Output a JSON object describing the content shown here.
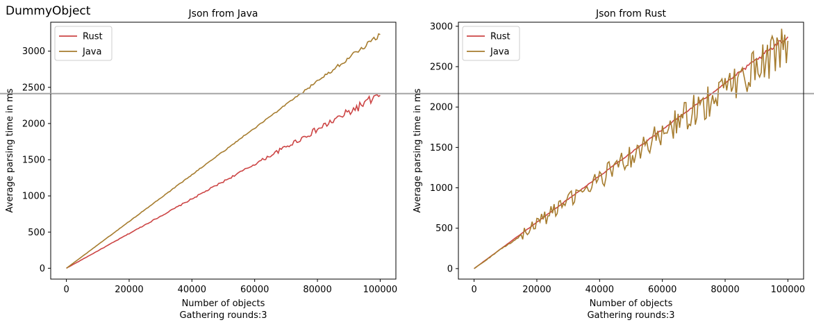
{
  "figure_title": "DummyObject",
  "chart_data": [
    {
      "type": "line",
      "title": "Json from Java",
      "xlabel": "Number of objects",
      "xlabel2": "Gathering rounds:3",
      "ylabel": "Average parsing time in ms",
      "xlim": [
        -5000,
        105000
      ],
      "ylim": [
        -150,
        3400
      ],
      "xticks": [
        0,
        20000,
        40000,
        60000,
        80000,
        100000
      ],
      "yticks": [
        0,
        500,
        1000,
        1500,
        2000,
        2500,
        3000
      ],
      "hline": 2410,
      "legend_position": "top-left",
      "series": [
        {
          "name": "Rust",
          "color": "#cc4444",
          "slope": 0.02396,
          "noise_start": 0.6,
          "noise_amp": 35,
          "end_value": 2390
        },
        {
          "name": "Java",
          "color": "#a67c2e",
          "slope": 0.0323,
          "noise_start": 0.7,
          "noise_amp": 18,
          "end_value": 3230
        }
      ]
    },
    {
      "type": "line",
      "title": "Json from Rust",
      "xlabel": "Number of objects",
      "xlabel2": "Gathering rounds:3",
      "ylabel": "Average parsing time in ms",
      "xlim": [
        -5000,
        105000
      ],
      "ylim": [
        -130,
        3050
      ],
      "xticks": [
        0,
        20000,
        40000,
        60000,
        80000,
        100000
      ],
      "yticks": [
        0,
        500,
        1000,
        1500,
        2000,
        2500,
        3000
      ],
      "hline": 2170,
      "legend_position": "top-left",
      "series": [
        {
          "name": "Rust",
          "color": "#cc4444",
          "slope": 0.0287,
          "noise_start": 0.8,
          "noise_amp": 20,
          "end_value": 2870
        },
        {
          "name": "Java",
          "color": "#a67c2e",
          "slope": 0.0278,
          "noise_start": 0.15,
          "noise_amp": 140,
          "end_value": 2820
        }
      ]
    }
  ]
}
